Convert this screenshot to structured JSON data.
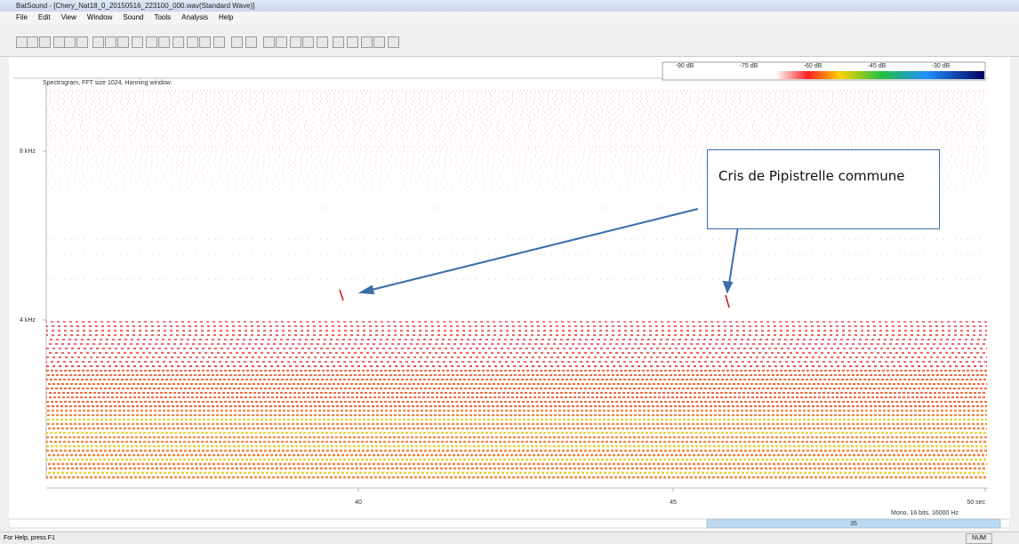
{
  "window": {
    "title": "BatSound - [Chery_Nat18_0_20150516_223100_000.wav(Standard Wave)]",
    "menu": [
      "File",
      "Edit",
      "View",
      "Window",
      "Sound",
      "Tools",
      "Analysis",
      "Help"
    ]
  },
  "spectrogram": {
    "caption": "Spectrogram, FFT size 1024, Hanning window.",
    "color_scale": [
      "-90 dB",
      "-75 dB",
      "-60 dB",
      "-45 dB",
      "-30 dB"
    ],
    "y_labels": [
      "8 kHz",
      "4 kHz"
    ],
    "x_labels": [
      "40",
      "45",
      "50 sec"
    ],
    "format": "Mono, 16 bits, 16000 Hz",
    "scroll_position": "35"
  },
  "annotation": {
    "text": "Cris de Pipistrelle commune"
  },
  "status_bar": {
    "help": "For Help, press F1",
    "indicator": "NUM"
  }
}
